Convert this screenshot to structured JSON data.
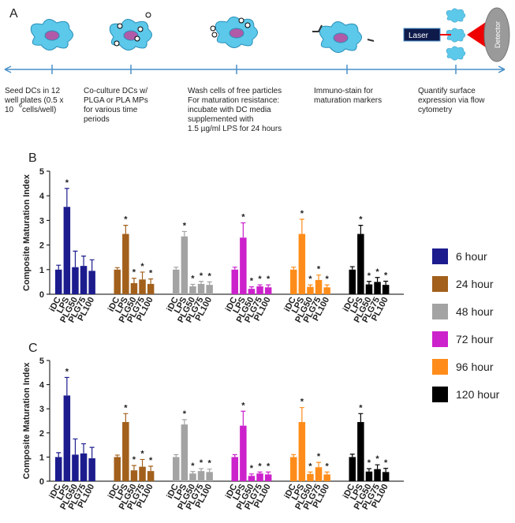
{
  "panels": {
    "a": "A",
    "b": "B",
    "c": "C"
  },
  "protocol": {
    "steps": [
      {
        "lines": [
          "Seed DCs in 12",
          "well plates (0.5 x",
          "10"
        ],
        "superscript": "6",
        "tail": " cells/well)"
      },
      {
        "lines": [
          "Co-culture DCs w/",
          "PLGA or PLA MPs",
          "for various time",
          "periods"
        ]
      },
      {
        "lines": [
          "Wash cells of free particles",
          "For maturation resistance:",
          "incubate with DC media",
          "supplemented with",
          "1.5 µg/ml LPS for 24 hours"
        ]
      },
      {
        "lines": [
          "Immuno-stain for",
          "maturation markers"
        ]
      },
      {
        "lines": [
          "Quantify surface",
          "expression via flow",
          "cytometry"
        ]
      }
    ],
    "laser": "Laser",
    "detector": "Detector"
  },
  "chart_data": [
    {
      "type": "bar",
      "ylabel": "Composite Maturation Index",
      "categories": [
        "iDC",
        "LPS",
        "PLG50",
        "PLG75",
        "PL100"
      ],
      "ylim": [
        0,
        5
      ],
      "yticks": [
        0,
        1,
        2,
        3,
        4,
        5
      ],
      "series": [
        {
          "name": "6 hour",
          "color": "#1c1c8e",
          "values": [
            1.0,
            3.55,
            1.1,
            1.15,
            0.95
          ],
          "errors": [
            0.18,
            0.75,
            0.65,
            0.4,
            0.45
          ],
          "annotations": [
            null,
            "*",
            null,
            null,
            null
          ]
        },
        {
          "name": "24 hour",
          "color": "#a2601c",
          "values": [
            1.0,
            2.45,
            0.45,
            0.6,
            0.42
          ],
          "errors": [
            0.08,
            0.35,
            0.2,
            0.3,
            0.2
          ],
          "annotations": [
            null,
            "*",
            "*",
            "*",
            "*"
          ]
        },
        {
          "name": "48 hour",
          "color": "#a3a3a3",
          "values": [
            1.0,
            2.35,
            0.32,
            0.42,
            0.38
          ],
          "errors": [
            0.1,
            0.2,
            0.08,
            0.1,
            0.12
          ],
          "annotations": [
            null,
            "*",
            "*",
            "*",
            "*"
          ]
        },
        {
          "name": "72 hour",
          "color": "#cc22cc",
          "values": [
            1.0,
            2.3,
            0.22,
            0.32,
            0.28
          ],
          "errors": [
            0.1,
            0.6,
            0.08,
            0.06,
            0.1
          ],
          "annotations": [
            null,
            "*",
            "*",
            "*",
            "*"
          ]
        },
        {
          "name": "96 hour",
          "color": "#ff8c1a",
          "values": [
            1.0,
            2.45,
            0.3,
            0.58,
            0.28
          ],
          "errors": [
            0.1,
            0.6,
            0.08,
            0.2,
            0.1
          ],
          "annotations": [
            null,
            "*",
            "*",
            "*",
            "*"
          ]
        },
        {
          "name": "120 hour",
          "color": "#000000",
          "values": [
            1.0,
            2.45,
            0.4,
            0.5,
            0.38
          ],
          "errors": [
            0.12,
            0.35,
            0.12,
            0.18,
            0.15
          ],
          "annotations": [
            null,
            "*",
            "*",
            "*",
            "*"
          ]
        }
      ]
    },
    {
      "type": "bar",
      "ylabel": "Composite Maturation Index",
      "categories": [
        "iDC",
        "LPS",
        "PLG50",
        "PLG75",
        "PL100"
      ],
      "ylim": [
        0,
        5
      ],
      "yticks": [
        0,
        1,
        2,
        3,
        4,
        5
      ],
      "series": [
        {
          "color": "#1c1c8e",
          "values": [
            1.0,
            3.55,
            1.1,
            1.15,
            0.95
          ],
          "errors": [
            0.18,
            0.75,
            0.65,
            0.4,
            0.45
          ],
          "annotations": [
            null,
            "*",
            null,
            null,
            null
          ]
        },
        {
          "color": "#a2601c",
          "values": [
            1.0,
            2.45,
            0.45,
            0.6,
            0.42
          ],
          "errors": [
            0.08,
            0.35,
            0.2,
            0.3,
            0.2
          ],
          "annotations": [
            null,
            "*",
            "*",
            "*",
            "*"
          ]
        },
        {
          "color": "#a3a3a3",
          "values": [
            1.0,
            2.35,
            0.32,
            0.42,
            0.38
          ],
          "errors": [
            0.1,
            0.2,
            0.08,
            0.1,
            0.12
          ],
          "annotations": [
            null,
            "*",
            "*",
            "*",
            "*"
          ]
        },
        {
          "color": "#cc22cc",
          "values": [
            1.0,
            2.3,
            0.22,
            0.32,
            0.28
          ],
          "errors": [
            0.1,
            0.6,
            0.08,
            0.06,
            0.1
          ],
          "annotations": [
            null,
            "*",
            "*",
            "*",
            "*"
          ]
        },
        {
          "color": "#ff8c1a",
          "values": [
            1.0,
            2.45,
            0.3,
            0.58,
            0.28
          ],
          "errors": [
            0.1,
            0.6,
            0.08,
            0.2,
            0.1
          ],
          "annotations": [
            null,
            "*",
            "*",
            "*",
            "*"
          ]
        },
        {
          "color": "#000000",
          "values": [
            1.0,
            2.45,
            0.4,
            0.5,
            0.38
          ],
          "errors": [
            0.12,
            0.35,
            0.12,
            0.18,
            0.15
          ],
          "annotations": [
            null,
            "*",
            "*",
            "*",
            "*"
          ]
        }
      ]
    }
  ]
}
